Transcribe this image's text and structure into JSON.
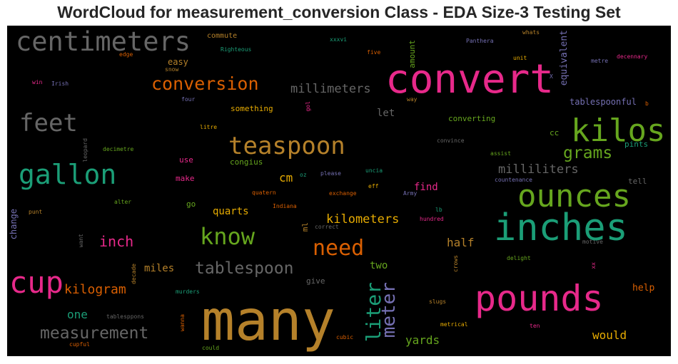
{
  "title": "WordCloud for measurement_conversion Class - EDA Size-3 Testing Set",
  "words": [
    {
      "text": "many",
      "color": "#b5812a"
    },
    {
      "text": "convert",
      "color": "#e7298a"
    },
    {
      "text": "inches",
      "color": "#1b9e77"
    },
    {
      "text": "pounds",
      "color": "#e7298a"
    },
    {
      "text": "ounces",
      "color": "#66a61e"
    },
    {
      "text": "kilos",
      "color": "#66a61e"
    },
    {
      "text": "centimeters",
      "color": "#666666"
    },
    {
      "text": "gallon",
      "color": "#1b9e77"
    },
    {
      "text": "cup",
      "color": "#e7298a"
    },
    {
      "text": "feet",
      "color": "#666666"
    },
    {
      "text": "teaspoon",
      "color": "#b5812a"
    },
    {
      "text": "conversion",
      "color": "#d95f02"
    },
    {
      "text": "know",
      "color": "#66a61e"
    },
    {
      "text": "need",
      "color": "#d95f02"
    },
    {
      "text": "tablespoon",
      "color": "#666666"
    },
    {
      "text": "measurement",
      "color": "#666666"
    },
    {
      "text": "liter",
      "color": "#1b9e77"
    },
    {
      "text": "meter",
      "color": "#7570b3"
    },
    {
      "text": "grams",
      "color": "#66a61e"
    },
    {
      "text": "milliliters",
      "color": "#666666"
    },
    {
      "text": "millimeters",
      "color": "#666666"
    },
    {
      "text": "kilometers",
      "color": "#e6ab02"
    },
    {
      "text": "kilogram",
      "color": "#d95f02"
    },
    {
      "text": "inch",
      "color": "#e7298a"
    },
    {
      "text": "half",
      "color": "#b5812a"
    },
    {
      "text": "would",
      "color": "#e6ab02"
    },
    {
      "text": "yards",
      "color": "#66a61e"
    },
    {
      "text": "one",
      "color": "#1b9e77"
    },
    {
      "text": "miles",
      "color": "#b5812a"
    },
    {
      "text": "quarts",
      "color": "#e6ab02"
    },
    {
      "text": "cm",
      "color": "#e6ab02"
    },
    {
      "text": "two",
      "color": "#66a61e"
    },
    {
      "text": "equivalent",
      "color": "#7570b3"
    },
    {
      "text": "find",
      "color": "#e7298a"
    },
    {
      "text": "let",
      "color": "#666666"
    },
    {
      "text": "help",
      "color": "#d95f02"
    },
    {
      "text": "easy",
      "color": "#b5812a"
    },
    {
      "text": "amount",
      "color": "#66a61e"
    },
    {
      "text": "converting",
      "color": "#66a61e"
    },
    {
      "text": "something",
      "color": "#e6ab02"
    },
    {
      "text": "tablespoonful",
      "color": "#7570b3"
    },
    {
      "text": "change",
      "color": "#7570b3"
    },
    {
      "text": "go",
      "color": "#66a61e"
    },
    {
      "text": "use",
      "color": "#e7298a"
    },
    {
      "text": "make",
      "color": "#e7298a"
    },
    {
      "text": "congius",
      "color": "#66a61e"
    },
    {
      "text": "tell",
      "color": "#666666"
    },
    {
      "text": "pints",
      "color": "#1b9e77"
    },
    {
      "text": "cc",
      "color": "#66a61e"
    },
    {
      "text": "ml",
      "color": "#b5812a"
    },
    {
      "text": "give",
      "color": "#666666"
    },
    {
      "text": "commute",
      "color": "#b5812a"
    },
    {
      "text": "Righteous",
      "color": "#1b9e77"
    },
    {
      "text": "edge",
      "color": "#d95f02"
    },
    {
      "text": "snow",
      "color": "#b5812a"
    },
    {
      "text": "win",
      "color": "#e7298a"
    },
    {
      "text": "Irish",
      "color": "#7570b3"
    },
    {
      "text": "four",
      "color": "#7570b3"
    },
    {
      "text": "litre",
      "color": "#e6ab02"
    },
    {
      "text": "leopard",
      "color": "#666666"
    },
    {
      "text": "decimetre",
      "color": "#66a61e"
    },
    {
      "text": "xxxvi",
      "color": "#1b9e77"
    },
    {
      "text": "five",
      "color": "#d95f02"
    },
    {
      "text": "Panthera",
      "color": "#7570b3"
    },
    {
      "text": "whats",
      "color": "#b5812a"
    },
    {
      "text": "decennary",
      "color": "#e7298a"
    },
    {
      "text": "unit",
      "color": "#e6ab02"
    },
    {
      "text": "metre",
      "color": "#7570b3"
    },
    {
      "text": "way",
      "color": "#b5812a"
    },
    {
      "text": "gol",
      "color": "#e7298a"
    },
    {
      "text": "X",
      "color": "#7570b3"
    },
    {
      "text": "b",
      "color": "#d95f02"
    },
    {
      "text": "convince",
      "color": "#666666"
    },
    {
      "text": "assist",
      "color": "#66a61e"
    },
    {
      "text": "countenance",
      "color": "#7570b3"
    },
    {
      "text": "uncia",
      "color": "#1b9e77"
    },
    {
      "text": "please",
      "color": "#7570b3"
    },
    {
      "text": "oz",
      "color": "#1b9e77"
    },
    {
      "text": "eff",
      "color": "#e6ab02"
    },
    {
      "text": "exchange",
      "color": "#d95f02"
    },
    {
      "text": "Army",
      "color": "#7570b3"
    },
    {
      "text": "quatern",
      "color": "#d95f02"
    },
    {
      "text": "Indiana",
      "color": "#d95f02"
    },
    {
      "text": "lb",
      "color": "#1b9e77"
    },
    {
      "text": "hundred",
      "color": "#e7298a"
    },
    {
      "text": "correct",
      "color": "#666666"
    },
    {
      "text": "alter",
      "color": "#66a61e"
    },
    {
      "text": "punt",
      "color": "#b5812a"
    },
    {
      "text": "want",
      "color": "#666666"
    },
    {
      "text": "decade",
      "color": "#b5812a"
    },
    {
      "text": "motive",
      "color": "#666666"
    },
    {
      "text": "delight",
      "color": "#66a61e"
    },
    {
      "text": "xx",
      "color": "#e7298a"
    },
    {
      "text": "crows",
      "color": "#b5812a"
    },
    {
      "text": "murders",
      "color": "#1b9e77"
    },
    {
      "text": "slugs",
      "color": "#b5812a"
    },
    {
      "text": "tablesppons",
      "color": "#666666"
    },
    {
      "text": "wanna",
      "color": "#d95f02"
    },
    {
      "text": "metrical",
      "color": "#e6ab02"
    },
    {
      "text": "ten",
      "color": "#e7298a"
    },
    {
      "text": "cubic",
      "color": "#d95f02"
    },
    {
      "text": "cupful",
      "color": "#d95f02"
    },
    {
      "text": "could",
      "color": "#66a61e"
    }
  ]
}
